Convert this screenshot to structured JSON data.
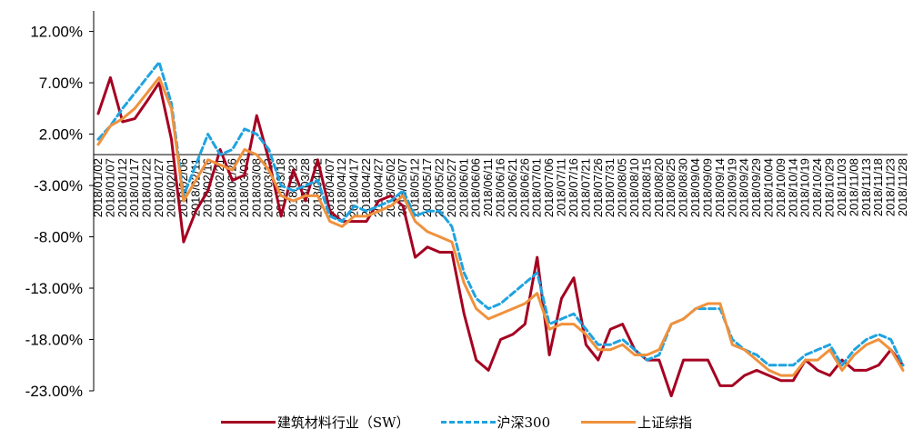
{
  "chart_data": {
    "type": "line",
    "ylim": [
      -23,
      14
    ],
    "yticks": [
      "12.00%",
      "7.00%",
      "2.00%",
      "-3.00%",
      "-8.00%",
      "-13.00%",
      "-18.00%",
      "-23.00%"
    ],
    "ytick_values": [
      12,
      7,
      2,
      -3,
      -8,
      -13,
      -18,
      -23
    ],
    "x": [
      "2018/01/02",
      "2018/01/07",
      "2018/01/12",
      "2018/01/17",
      "2018/01/22",
      "2018/01/27",
      "2018/02/01",
      "2018/02/06",
      "2018/02/11",
      "2018/02/16",
      "2018/02/21",
      "2018/02/26",
      "2018/03/03",
      "2018/03/08",
      "2018/03/13",
      "2018/03/18",
      "2018/03/23",
      "2018/03/28",
      "2018/04/02",
      "2018/04/07",
      "2018/04/12",
      "2018/04/17",
      "2018/04/22",
      "2018/04/27",
      "2018/05/02",
      "2018/05/07",
      "2018/05/12",
      "2018/05/17",
      "2018/05/22",
      "2018/05/27",
      "2018/06/01",
      "2018/06/06",
      "2018/06/11",
      "2018/06/16",
      "2018/06/21",
      "2018/06/26",
      "2018/07/01",
      "2018/07/06",
      "2018/07/11",
      "2018/07/16",
      "2018/07/21",
      "2018/07/26",
      "2018/07/31",
      "2018/08/05",
      "2018/08/10",
      "2018/08/15",
      "2018/08/20",
      "2018/08/25",
      "2018/08/30",
      "2018/09/04",
      "2018/09/09",
      "2018/09/14",
      "2018/09/19",
      "2018/09/24",
      "2018/09/29",
      "2018/10/04",
      "2018/10/09",
      "2018/10/14",
      "2018/10/19",
      "2018/10/24",
      "2018/10/29",
      "2018/11/03",
      "2018/11/08",
      "2018/11/13",
      "2018/11/18",
      "2018/11/23",
      "2018/11/28"
    ],
    "series": [
      {
        "name": "建筑材料行业（SW）",
        "color": "#A50021",
        "dash": "solid",
        "values": [
          4.0,
          7.5,
          3.2,
          3.5,
          5.2,
          7.0,
          1.5,
          -8.5,
          -5.5,
          -3.5,
          0.5,
          -2.5,
          -2.0,
          3.8,
          -0.5,
          -6.0,
          -1.5,
          -4.5,
          -0.5,
          -5.5,
          -6.5,
          -6.5,
          -6.5,
          -4.5,
          -4.0,
          -5.0,
          -10.0,
          -9.0,
          -9.5,
          -9.5,
          -15.5,
          -20.0,
          -21.0,
          -18.0,
          -17.5,
          -16.5,
          -10.0,
          -19.5,
          -14.0,
          -12.0,
          -18.5,
          -20.0,
          -17.0,
          -16.5,
          -19.0,
          -20.0,
          -20.0,
          -23.5,
          -20.0,
          -20.0,
          -20.0,
          -22.5,
          -22.5,
          -21.5,
          -21.0,
          -21.5,
          -22.0,
          -22.0,
          -20.0,
          -21.0,
          -21.5,
          -20.0,
          -21.0,
          -21.0,
          -20.5,
          -19.0,
          -20.5
        ]
      },
      {
        "name": "沪深300",
        "color": "#1FA3E0",
        "dash": "dashed",
        "values": [
          1.5,
          2.8,
          4.5,
          6.0,
          7.5,
          9.0,
          5.0,
          -4.0,
          -1.0,
          2.0,
          0.0,
          0.5,
          2.5,
          2.0,
          0.5,
          -3.0,
          -3.5,
          -3.0,
          -2.5,
          -6.0,
          -6.5,
          -5.0,
          -5.5,
          -5.0,
          -4.5,
          -3.5,
          -6.0,
          -5.5,
          -5.5,
          -7.0,
          -11.5,
          -14.0,
          -15.0,
          -14.5,
          -13.5,
          -12.5,
          -11.5,
          -16.5,
          -16.0,
          -15.5,
          -17.0,
          -18.5,
          -18.5,
          -18.0,
          -19.0,
          -20.0,
          -19.5,
          -16.5,
          -16.0,
          -15.0,
          -15.0,
          -15.0,
          -18.0,
          -19.0,
          -19.5,
          -20.5,
          -20.5,
          -20.5,
          -19.5,
          -19.0,
          -18.5,
          -20.5,
          -19.0,
          -18.0,
          -17.5,
          -18.0,
          -20.5
        ]
      },
      {
        "name": "上证综指",
        "color": "#F0913C",
        "dash": "solid",
        "values": [
          1.0,
          2.8,
          3.5,
          4.5,
          6.0,
          7.5,
          4.5,
          -4.5,
          -2.5,
          -0.5,
          -1.0,
          -1.5,
          0.5,
          0.0,
          -1.5,
          -4.0,
          -4.5,
          -4.0,
          -4.0,
          -6.5,
          -7.0,
          -6.0,
          -6.0,
          -5.5,
          -5.0,
          -4.0,
          -6.5,
          -7.5,
          -8.0,
          -8.5,
          -12.5,
          -15.0,
          -16.0,
          -15.5,
          -15.0,
          -14.5,
          -13.5,
          -17.0,
          -16.5,
          -16.5,
          -17.5,
          -19.0,
          -19.0,
          -18.5,
          -19.5,
          -19.5,
          -19.0,
          -16.5,
          -16.0,
          -15.0,
          -14.5,
          -14.5,
          -18.5,
          -19.0,
          -20.0,
          -21.0,
          -21.5,
          -21.5,
          -20.0,
          -20.0,
          -19.0,
          -21.0,
          -19.5,
          -18.5,
          -18.0,
          -19.0,
          -21.0
        ]
      }
    ]
  }
}
